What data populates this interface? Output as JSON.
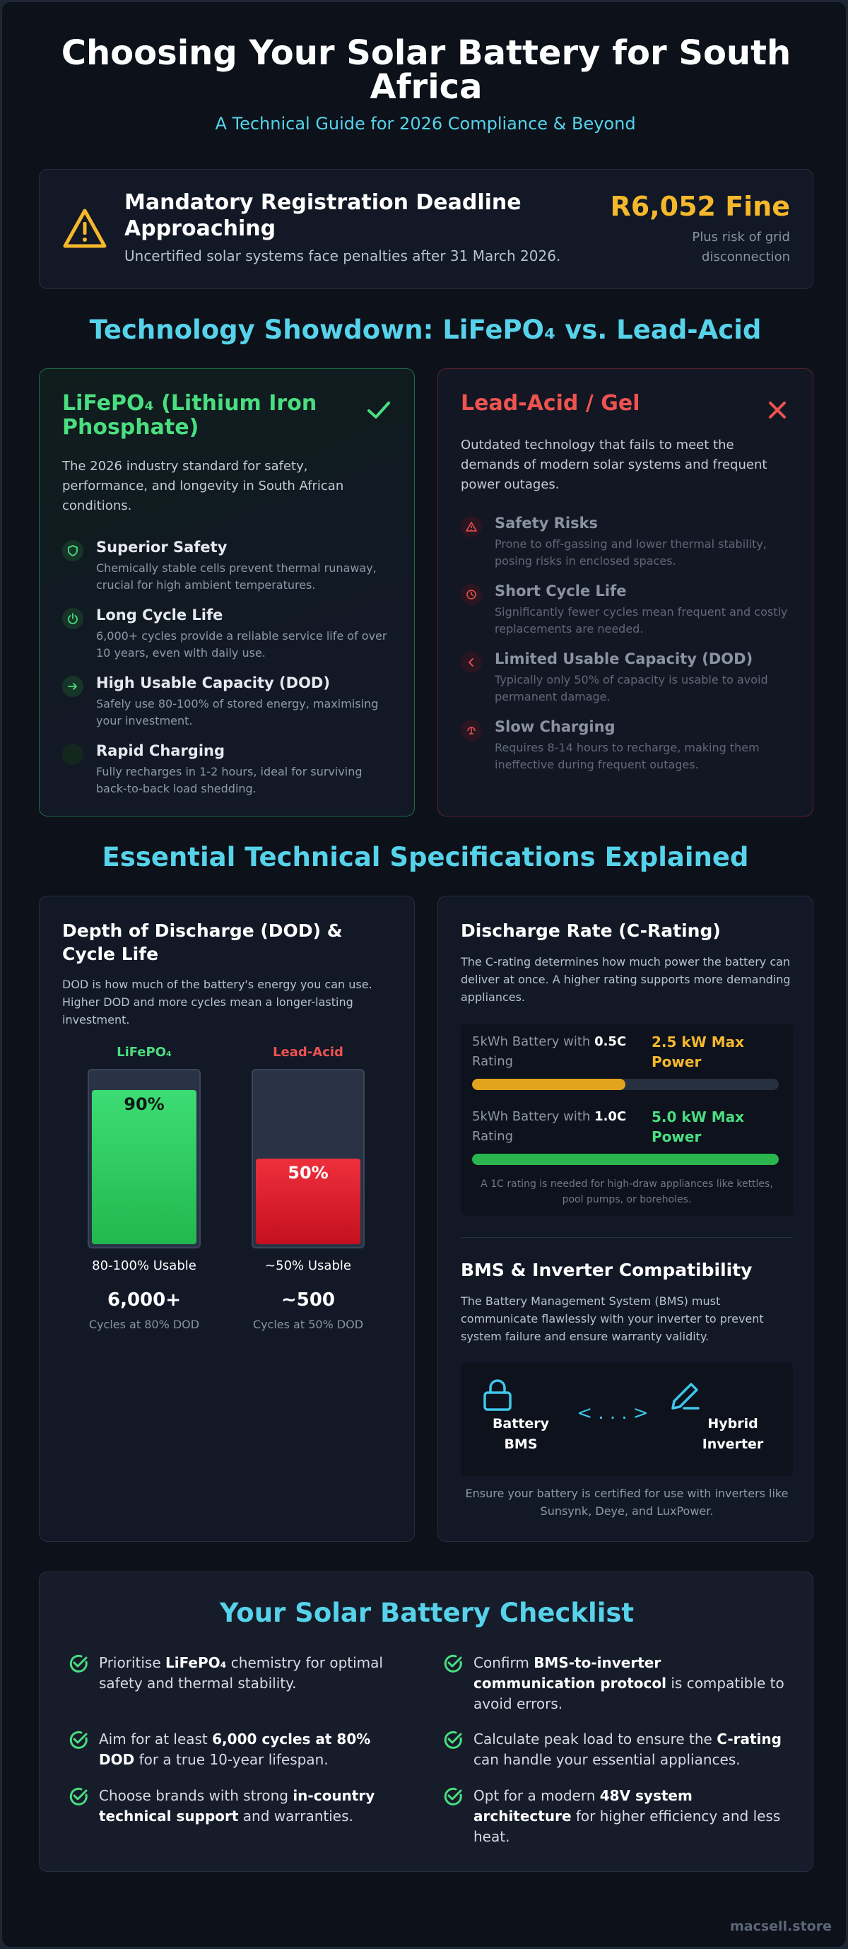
{
  "header": {
    "title": "Choosing Your Solar Battery for South Africa",
    "subtitle": "A Technical Guide for 2026 Compliance & Beyond"
  },
  "alert": {
    "icon": "warning-triangle-icon",
    "title": "Mandatory Registration Deadline Approaching",
    "subtitle": "Uncertified solar systems face penalties after 31 March 2026.",
    "fine": "R6,052 Fine",
    "fine_note": "Plus risk of grid disconnection"
  },
  "showdown": {
    "heading": "Technology Showdown: LiFePO₄ vs. Lead-Acid",
    "lifepo4": {
      "title": "LiFePO₄ (Lithium Iron Phosphate)",
      "mark_icon": "checkmark-icon",
      "description": "The 2026 industry standard for safety, performance, and longevity in South African conditions.",
      "features": [
        {
          "icon": "shield-icon",
          "title": "Superior Safety",
          "desc": "Chemically stable cells prevent thermal runaway, crucial for high ambient temperatures."
        },
        {
          "icon": "power-icon",
          "title": "Long Cycle Life",
          "desc": "6,000+ cycles provide a reliable service life of over 10 years, even with daily use."
        },
        {
          "icon": "arrow-right-icon",
          "title": "High Usable Capacity (DOD)",
          "desc": "Safely use 80-100% of stored energy, maximising your investment."
        },
        {
          "icon": "lightning-icon",
          "title": "Rapid Charging",
          "desc": "Fully recharges in 1-2 hours, ideal for surviving back-to-back load shedding."
        }
      ]
    },
    "leadacid": {
      "title": "Lead-Acid / Gel",
      "mark_icon": "x-icon",
      "description": "Outdated technology that fails to meet the demands of modern solar systems and frequent power outages.",
      "features": [
        {
          "icon": "warning-icon",
          "title": "Safety Risks",
          "desc": "Prone to off-gassing and lower thermal stability, posing risks in enclosed spaces."
        },
        {
          "icon": "clock-icon",
          "title": "Short Cycle Life",
          "desc": "Significantly fewer cycles mean frequent and costly replacements are needed."
        },
        {
          "icon": "chevron-left-icon",
          "title": "Limited Usable Capacity (DOD)",
          "desc": "Typically only 50% of capacity is usable to avoid permanent damage."
        },
        {
          "icon": "slow-charge-icon",
          "title": "Slow Charging",
          "desc": "Requires 8-14 hours to recharge, making them ineffective during frequent outages."
        }
      ]
    }
  },
  "specs": {
    "heading": "Essential Technical Specifications Explained",
    "dod": {
      "title": "Depth of Discharge (DOD) & Cycle Life",
      "description": "DOD is how much of the battery's energy you can use. Higher DOD and more cycles mean a longer-lasting investment.",
      "bars": [
        {
          "label": "LiFePO₄",
          "value": 90,
          "value_label": "90%",
          "usable": "80-100% Usable",
          "cycles": "6,000+",
          "cycles_note": "Cycles at 80% DOD"
        },
        {
          "label": "Lead-Acid",
          "value": 50,
          "value_label": "50%",
          "usable": "~50% Usable",
          "cycles": "~500",
          "cycles_note": "Cycles at 50% DOD"
        }
      ]
    },
    "crate": {
      "title": "Discharge Rate (C-Rating)",
      "description": "The C-rating determines how much power the battery can deliver at once. A higher rating supports more demanding appliances.",
      "rows": [
        {
          "prefix": "5kWh Battery with ",
          "rating": "0.5C",
          "suffix": " Rating",
          "power": "2.5 kW Max Power",
          "power_kw": 2.5,
          "max_kw": 5.0
        },
        {
          "prefix": "5kWh Battery with ",
          "rating": "1.0C",
          "suffix": " Rating",
          "power": "5.0 kW Max Power",
          "power_kw": 5.0,
          "max_kw": 5.0
        }
      ],
      "note": "A 1C rating is needed for high-draw appliances like kettles, pool pumps, or boreholes."
    },
    "bms": {
      "title": "BMS & Inverter Compatibility",
      "description": "The Battery Management System (BMS) must communicate flawlessly with your inverter to prevent system failure and ensure warranty validity.",
      "left_icon": "lock-icon",
      "left_label": "Battery BMS",
      "link": "< . . . >",
      "right_icon": "pen-icon",
      "right_label": "Hybrid Inverter",
      "note": "Ensure your battery is certified for use with inverters like Sunsynk, Deye, and LuxPower."
    }
  },
  "checklist": {
    "title": "Your Solar Battery Checklist",
    "items": [
      {
        "pre": "Prioritise ",
        "bold": "LiFePO₄",
        "post": " chemistry for optimal safety and thermal stability."
      },
      {
        "pre": "Confirm ",
        "bold": "BMS-to-inverter communication protocol",
        "post": " is compatible to avoid errors."
      },
      {
        "pre": "Aim for at least ",
        "bold": "6,000 cycles at 80% DOD",
        "post": " for a true 10-year lifespan."
      },
      {
        "pre": "Calculate peak load to ensure the ",
        "bold": "C-rating",
        "post": " can handle your essential appliances."
      },
      {
        "pre": "Choose brands with strong ",
        "bold": "in-country technical support",
        "post": " and warranties."
      },
      {
        "pre": "Opt for a modern ",
        "bold": "48V system architecture",
        "post": " for higher efficiency and less heat."
      }
    ]
  },
  "footer": {
    "brand": "macsell.store"
  },
  "colors": {
    "accent": "#56d3ea",
    "green": "#4ade80",
    "red": "#ef5350",
    "amber": "#f5b82b"
  }
}
